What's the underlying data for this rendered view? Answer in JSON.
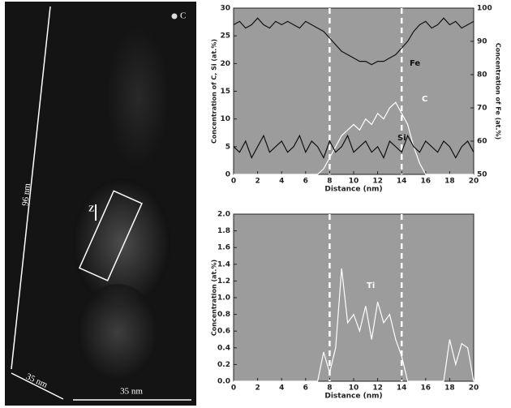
{
  "image": {
    "scale_length": "96 nm",
    "depth": "35 nm",
    "width": "35 nm",
    "direction": "Z",
    "legend": "C"
  },
  "chart_data": [
    {
      "type": "line",
      "xlabel": "Distance (nm)",
      "ylabel": "Concentration of C, Si (at.%)",
      "y2label": "Concentration of Fe (at.%)",
      "x": [
        0,
        0.5,
        1,
        1.5,
        2,
        2.5,
        3,
        3.5,
        4,
        4.5,
        5,
        5.5,
        6,
        6.5,
        7,
        7.5,
        8,
        8.5,
        9,
        9.5,
        10,
        10.5,
        11,
        11.5,
        12,
        12.5,
        13,
        13.5,
        14,
        14.5,
        15,
        15.5,
        16,
        16.5,
        17,
        17.5,
        18,
        18.5,
        19,
        19.5,
        20
      ],
      "series": [
        {
          "name": "Fe",
          "color": "#111111",
          "axis": "y2",
          "values": [
            95,
            96,
            94,
            95,
            97,
            95,
            94,
            96,
            95,
            96,
            95,
            94,
            96,
            95,
            94,
            93,
            91,
            89,
            87,
            86,
            85,
            84,
            84,
            83,
            84,
            84,
            85,
            86,
            88,
            90,
            93,
            95,
            96,
            94,
            95,
            97,
            95,
            96,
            94,
            95,
            96
          ]
        },
        {
          "name": "C",
          "color": "#ffffff",
          "values": [
            0,
            0,
            0,
            0,
            0,
            0,
            0,
            0,
            0,
            0,
            0,
            0,
            0,
            0,
            0,
            1,
            3,
            5,
            7,
            8,
            9,
            8,
            10,
            9,
            11,
            10,
            12,
            13,
            11,
            9,
            5,
            2,
            0,
            0,
            0,
            0,
            0,
            0,
            0,
            0,
            0
          ]
        },
        {
          "name": "Si",
          "color": "#111111",
          "values": [
            5,
            4,
            6,
            3,
            5,
            7,
            4,
            5,
            6,
            4,
            5,
            7,
            4,
            6,
            5,
            3,
            6,
            4,
            5,
            7,
            4,
            5,
            6,
            4,
            5,
            3,
            6,
            5,
            4,
            7,
            5,
            4,
            6,
            5,
            4,
            6,
            5,
            3,
            5,
            6,
            4
          ]
        }
      ],
      "xlim": [
        0,
        20
      ],
      "xticks": [
        0,
        2,
        4,
        6,
        8,
        10,
        12,
        14,
        16,
        18,
        20
      ],
      "ylim": [
        0,
        30
      ],
      "yticks": [
        0,
        5,
        10,
        15,
        20,
        25,
        30
      ],
      "y2lim": [
        50,
        100
      ],
      "y2ticks": [
        50,
        60,
        70,
        80,
        90,
        100
      ],
      "vlines": [
        8,
        14
      ],
      "background": "#9c9c9c"
    },
    {
      "type": "line",
      "xlabel": "Distance (nm)",
      "ylabel": "Concentration (at.%)",
      "x": [
        0,
        0.5,
        1,
        1.5,
        2,
        2.5,
        3,
        3.5,
        4,
        4.5,
        5,
        5.5,
        6,
        6.5,
        7,
        7.5,
        8,
        8.5,
        9,
        9.5,
        10,
        10.5,
        11,
        11.5,
        12,
        12.5,
        13,
        13.5,
        14,
        14.5,
        15,
        15.5,
        16,
        16.5,
        17,
        17.5,
        18,
        18.5,
        19,
        19.5,
        20
      ],
      "series": [
        {
          "name": "Ti",
          "color": "#ffffff",
          "values": [
            0,
            0,
            0,
            0,
            0,
            0,
            0,
            0,
            0,
            0,
            0,
            0,
            0,
            0,
            0,
            0.35,
            0.1,
            0.4,
            1.35,
            0.7,
            0.8,
            0.6,
            0.9,
            0.5,
            0.95,
            0.7,
            0.8,
            0.5,
            0.3,
            0,
            0,
            0,
            0,
            0,
            0,
            0,
            0.5,
            0.2,
            0.45,
            0.4,
            0
          ]
        }
      ],
      "xlim": [
        0,
        20
      ],
      "xticks": [
        0,
        2,
        4,
        6,
        8,
        10,
        12,
        14,
        16,
        18,
        20
      ],
      "ylim": [
        0,
        2
      ],
      "yticks": [
        {
          "value": 0,
          "label": "0.0"
        },
        0.2,
        0.4,
        0.6,
        0.8,
        {
          "value": 1,
          "label": "1.0"
        },
        1.2,
        1.4,
        1.6,
        1.8,
        {
          "value": 2,
          "label": "2.0"
        }
      ],
      "vlines": [
        8,
        14
      ],
      "background": "#9c9c9c"
    }
  ]
}
